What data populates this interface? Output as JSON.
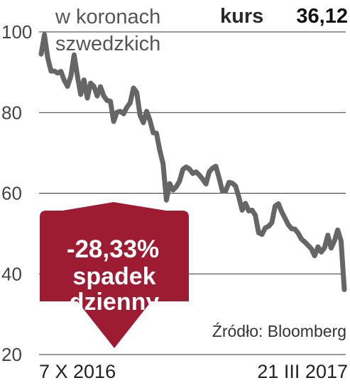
{
  "colors": {
    "line": "#666666",
    "grid": "#333333",
    "callout": "#9e1c32",
    "text": "#222222"
  },
  "chart_data": {
    "type": "line",
    "unit_line1": "w koronach",
    "unit_line2": "szwedzkich",
    "price_label": "kurs",
    "price_value": "36,12",
    "source": "Źródło: Bloomberg",
    "x_start_label": "7 X 2016",
    "x_end_label": "21 III 2017",
    "ylim": [
      20,
      100
    ],
    "yticks": [
      {
        "value": 100,
        "label": "100"
      },
      {
        "value": 80,
        "label": "80"
      },
      {
        "value": 60,
        "label": "60"
      },
      {
        "value": 40,
        "label": "40"
      },
      {
        "value": 20,
        "label": "20"
      }
    ],
    "grid": true,
    "callout": {
      "percent": "-28,33%",
      "line1": "spadek",
      "line2": "dzienny"
    },
    "series": [
      {
        "values": [
          94.5,
          99.3,
          93.5,
          90.3,
          90.3,
          89.8,
          90.2,
          88,
          86.5,
          89,
          94.3,
          89,
          84.5,
          88.1,
          83.6,
          87.3,
          86.5,
          84.1,
          86.4,
          84.1,
          83,
          82.8,
          77.8,
          80.1,
          80.3,
          79.7,
          81.3,
          82.4,
          86.1,
          85,
          79.4,
          77.5,
          80.3,
          78.1,
          75,
          74.9,
          70.6,
          67.3,
          58.3,
          62.4,
          60.8,
          61.6,
          63,
          65.9,
          66.5,
          66,
          64.9,
          65.3,
          64.5,
          63.5,
          62.3,
          65.3,
          66.2,
          66.7,
          63.8,
          60.5,
          60.6,
          62.7,
          62.5,
          61.8,
          59,
          55.8,
          57.5,
          55.6,
          55.8,
          54.5,
          50.2,
          49.8,
          51.4,
          51.8,
          52.7,
          56.8,
          57.4,
          55.4,
          53.8,
          52.2,
          51.2,
          51.1,
          50.1,
          48.6,
          47.9,
          47.1,
          46.2,
          44.5,
          46.7,
          45.4,
          46.5,
          49.6,
          46.4,
          48.2,
          50.9,
          48.2,
          36.1
        ]
      }
    ]
  }
}
